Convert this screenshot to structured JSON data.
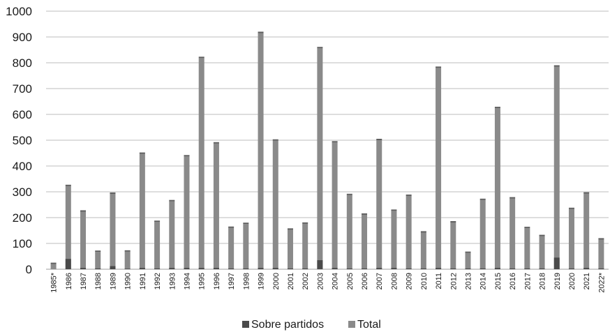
{
  "chart_data": {
    "type": "bar",
    "title": "",
    "xlabel": "",
    "ylabel": "",
    "ylim": [
      0,
      1000
    ],
    "yticks": [
      0,
      100,
      200,
      300,
      400,
      500,
      600,
      700,
      800,
      900,
      1000
    ],
    "grid": true,
    "legend_position": "bottom",
    "categories": [
      "1985*",
      "1986",
      "1987",
      "1988",
      "1989",
      "1990",
      "1991",
      "1992",
      "1993",
      "1994",
      "1995",
      "1996",
      "1997",
      "1998",
      "1999",
      "2000",
      "2001",
      "2002",
      "2003",
      "2004",
      "2005",
      "2006",
      "2007",
      "2008",
      "2009",
      "2010",
      "2011",
      "2012",
      "2013",
      "2014",
      "2015",
      "2016",
      "2017",
      "2018",
      "2019",
      "2020",
      "2021",
      "2022*"
    ],
    "series": [
      {
        "name": "Sobre partidos",
        "color": "#4a4a4a",
        "values": [
          0,
          40,
          5,
          3,
          12,
          2,
          5,
          3,
          5,
          5,
          5,
          5,
          3,
          3,
          5,
          5,
          3,
          3,
          35,
          5,
          3,
          3,
          5,
          5,
          3,
          3,
          5,
          3,
          3,
          3,
          5,
          3,
          3,
          3,
          45,
          3,
          5,
          3
        ]
      },
      {
        "name": "Total",
        "color": "#8a8a8a",
        "values": [
          20,
          322,
          223,
          67,
          292,
          68,
          447,
          183,
          263,
          437,
          818,
          487,
          160,
          175,
          915,
          498,
          153,
          176,
          856,
          491,
          287,
          211,
          500,
          226,
          284,
          142,
          780,
          181,
          63,
          268,
          624,
          274,
          159,
          128,
          785,
          233,
          293,
          115
        ]
      }
    ]
  }
}
